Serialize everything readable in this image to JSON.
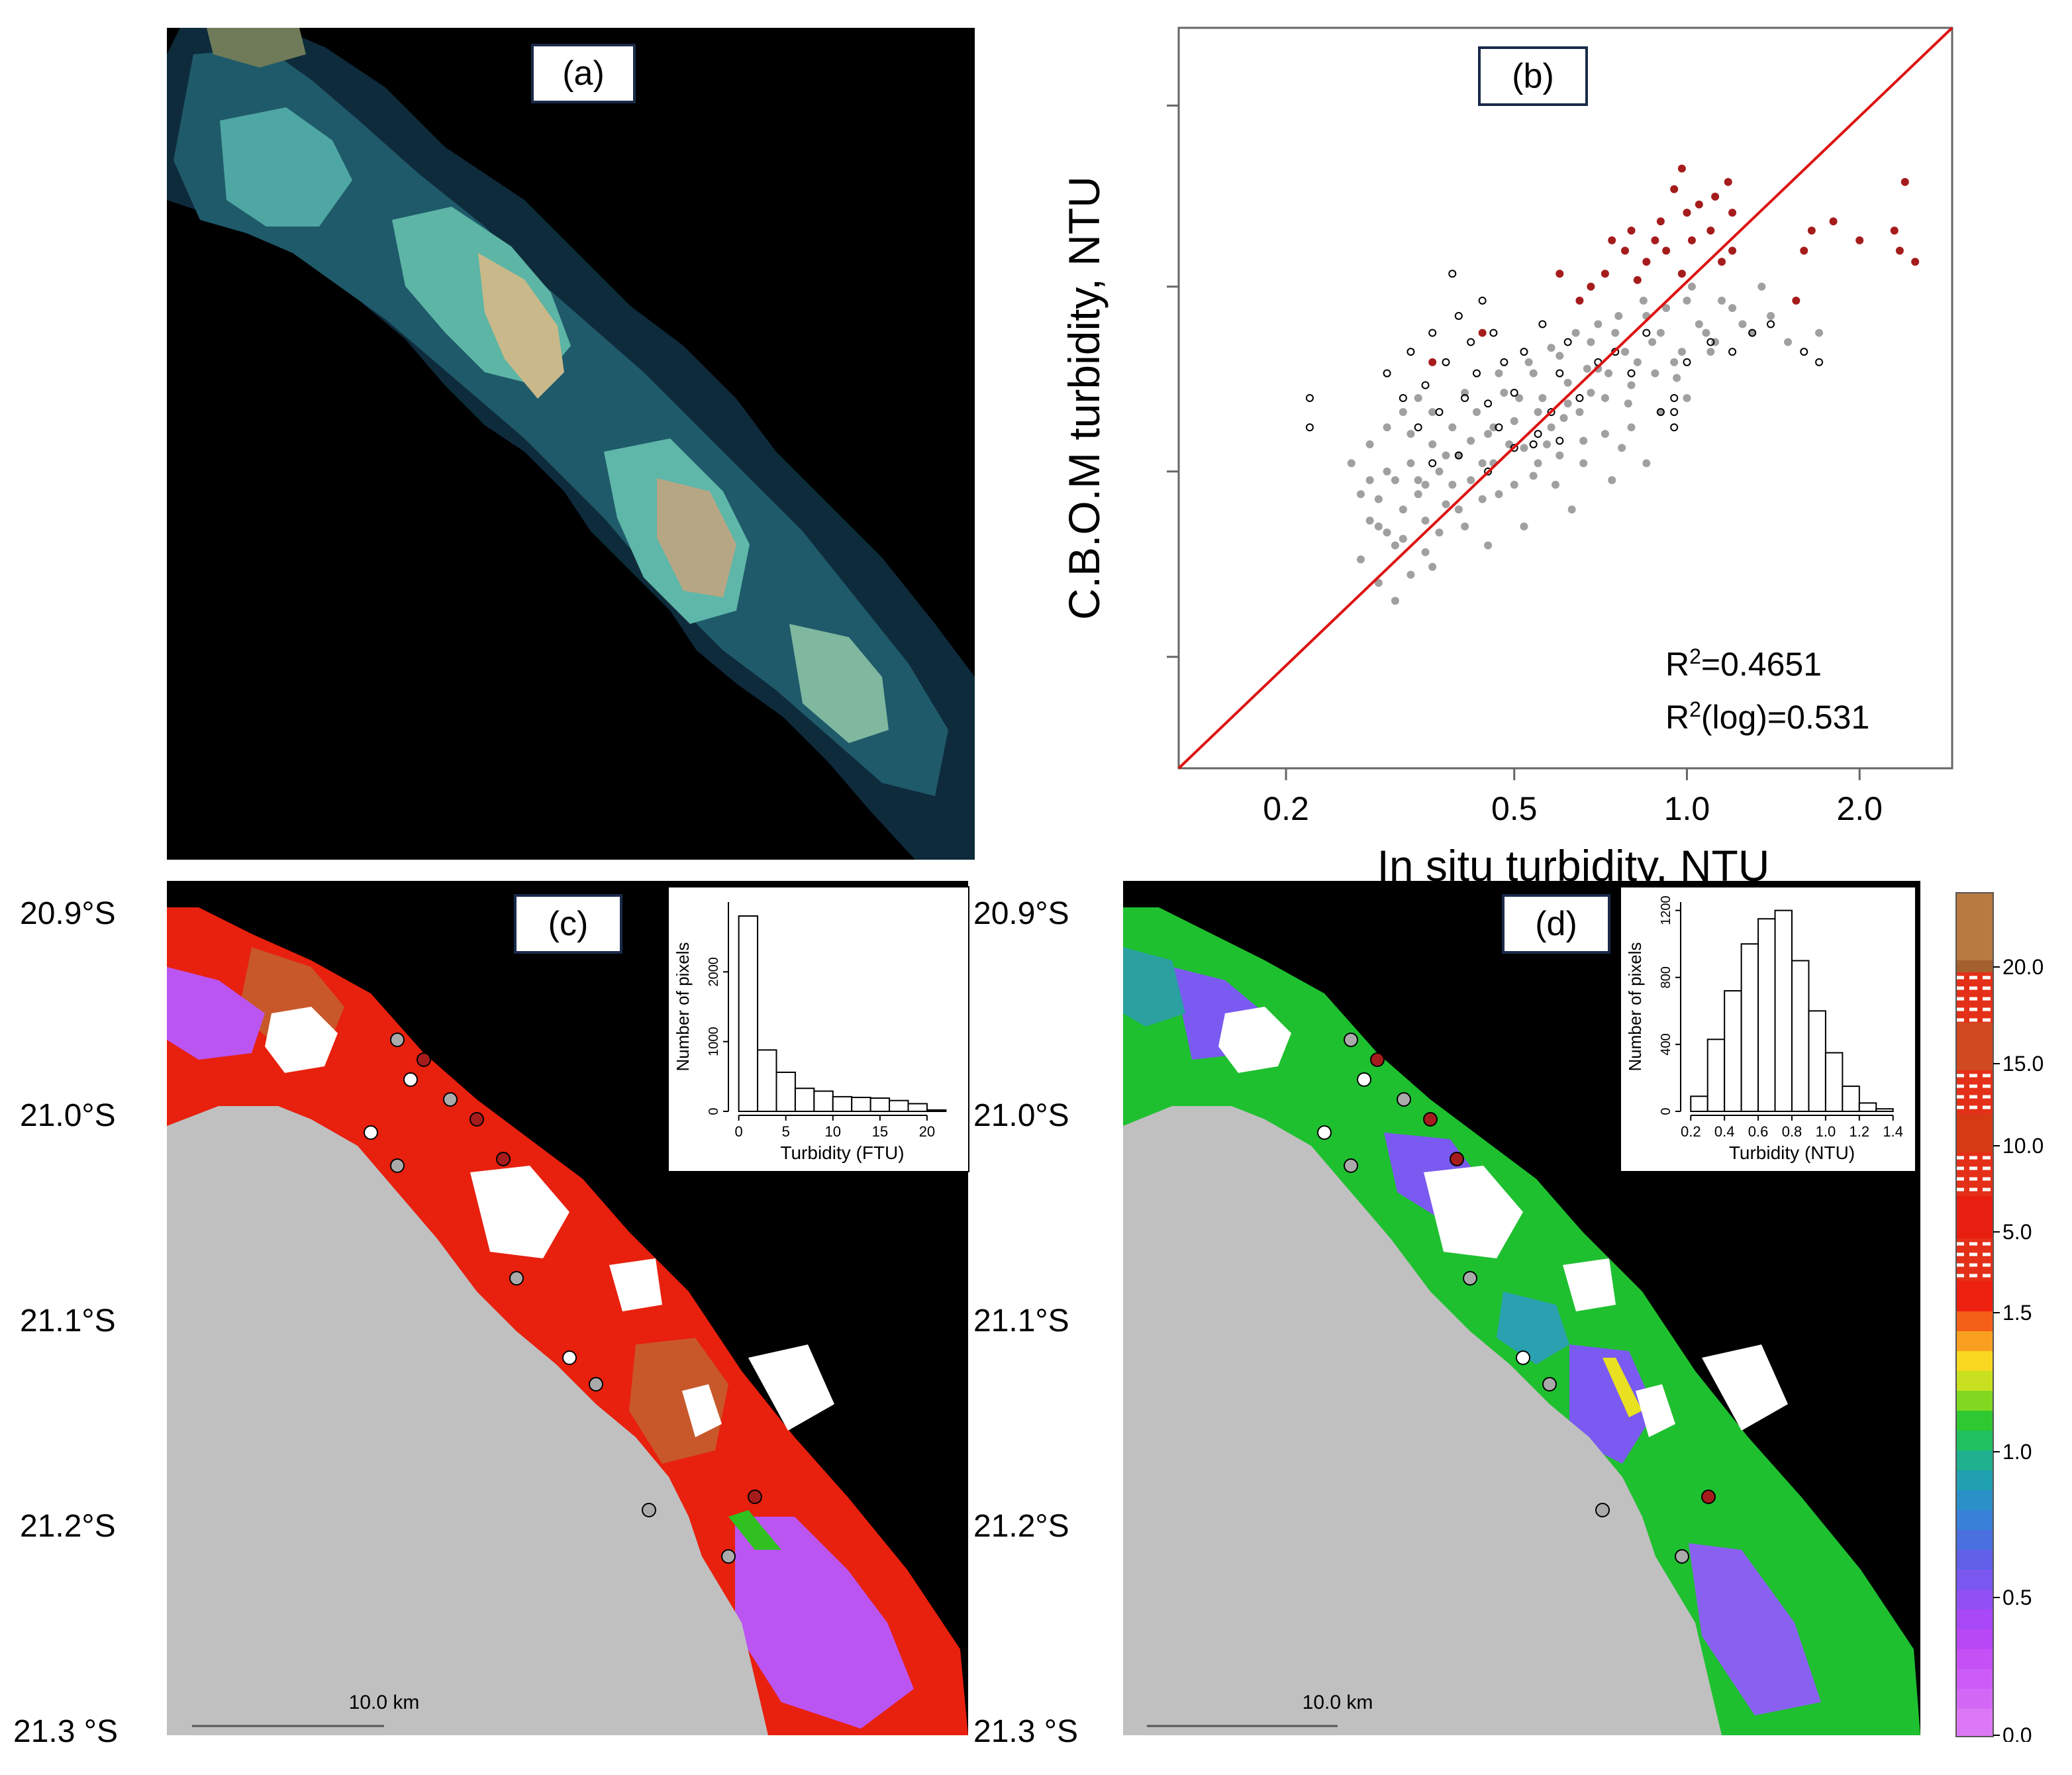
{
  "panels": {
    "a": {
      "label": "(a)"
    },
    "b": {
      "label": "(b)"
    },
    "c": {
      "label": "(c)"
    },
    "d": {
      "label": "(d)"
    }
  },
  "colors": {
    "frame_border": "#1a2a4a",
    "ocean_black": "#000000",
    "land_gray": "#c0c0c0",
    "cloud_white": "#ffffff",
    "one_to_one_line": "#dd1111",
    "scatter_gray": "#a0a0a0",
    "scatter_red": "#a51c1c",
    "scatter_open": "#000000"
  },
  "chart_data": [
    {
      "id": "b",
      "type": "scatter",
      "title": "(b)",
      "xlabel": "In situ turbidity, NTU",
      "ylabel": "C.B.O.M turbidity, NTU",
      "xscale": "log",
      "yscale": "log",
      "xlim": [
        0.13,
        2.9
      ],
      "ylim": [
        0.06,
        6.0
      ],
      "xticks": [
        0.2,
        0.5,
        1.0,
        2.0
      ],
      "xtick_labels": [
        "0.2",
        "0.5",
        "1.0",
        "2.0"
      ],
      "yticks": [
        0.12,
        0.38,
        1.2,
        3.7
      ],
      "ytick_labels": [
        "",
        "",
        "",
        ""
      ],
      "reference_line": "1:1",
      "annotations": [
        "R²=0.4651",
        "R²(log)=0.531"
      ],
      "r2_text": "0.4651",
      "r2log_text": "0.531",
      "series": [
        {
          "name": "gray",
          "points": [
            [
              0.28,
              0.28
            ],
            [
              0.29,
              0.32
            ],
            [
              0.3,
              0.26
            ],
            [
              0.31,
              0.36
            ],
            [
              0.32,
              0.3
            ],
            [
              0.33,
              0.4
            ],
            [
              0.34,
              0.33
            ],
            [
              0.35,
              0.28
            ],
            [
              0.36,
              0.45
            ],
            [
              0.37,
              0.38
            ],
            [
              0.38,
              0.31
            ],
            [
              0.39,
              0.5
            ],
            [
              0.4,
              0.42
            ],
            [
              0.42,
              0.36
            ],
            [
              0.43,
              0.55
            ],
            [
              0.45,
              0.48
            ],
            [
              0.46,
              0.4
            ],
            [
              0.48,
              0.62
            ],
            [
              0.5,
              0.52
            ],
            [
              0.52,
              0.44
            ],
            [
              0.54,
              0.7
            ],
            [
              0.56,
              0.6
            ],
            [
              0.58,
              0.5
            ],
            [
              0.6,
              0.78
            ],
            [
              0.62,
              0.66
            ],
            [
              0.65,
              0.55
            ],
            [
              0.68,
              0.85
            ],
            [
              0.7,
              0.72
            ],
            [
              0.72,
              0.6
            ],
            [
              0.75,
              0.9
            ],
            [
              0.78,
              0.8
            ],
            [
              0.8,
              0.65
            ],
            [
              0.85,
              1.0
            ],
            [
              0.9,
              0.9
            ],
            [
              0.95,
              0.75
            ],
            [
              1.0,
              1.1
            ],
            [
              1.05,
              0.95
            ],
            [
              1.1,
              0.8
            ],
            [
              1.2,
              1.05
            ],
            [
              1.3,
              0.9
            ],
            [
              1.4,
              1.0
            ],
            [
              1.5,
              0.85
            ],
            [
              0.27,
              0.22
            ],
            [
              0.29,
              0.19
            ],
            [
              0.31,
              0.24
            ],
            [
              0.33,
              0.2
            ],
            [
              0.35,
              0.23
            ],
            [
              0.37,
              0.26
            ],
            [
              0.4,
              0.3
            ],
            [
              0.44,
              0.32
            ],
            [
              0.5,
              0.35
            ],
            [
              0.55,
              0.4
            ],
            [
              0.6,
              0.42
            ],
            [
              0.66,
              0.46
            ],
            [
              0.72,
              0.48
            ],
            [
              0.8,
              0.5
            ],
            [
              0.9,
              0.55
            ],
            [
              1.0,
              0.6
            ],
            [
              0.26,
              0.4
            ],
            [
              0.28,
              0.45
            ],
            [
              0.3,
              0.5
            ],
            [
              0.32,
              0.55
            ],
            [
              0.34,
              0.6
            ],
            [
              0.36,
              0.55
            ],
            [
              0.41,
              0.62
            ],
            [
              0.47,
              0.7
            ],
            [
              0.53,
              0.75
            ],
            [
              0.58,
              0.82
            ],
            [
              0.64,
              0.9
            ],
            [
              0.7,
              0.95
            ],
            [
              0.76,
              1.0
            ],
            [
              0.84,
              1.1
            ],
            [
              0.92,
              1.05
            ],
            [
              1.02,
              1.2
            ],
            [
              1.15,
              1.1
            ],
            [
              0.27,
              0.33
            ],
            [
              0.3,
              0.38
            ],
            [
              0.34,
              0.36
            ],
            [
              0.38,
              0.42
            ],
            [
              0.42,
              0.46
            ],
            [
              0.46,
              0.5
            ],
            [
              0.49,
              0.45
            ],
            [
              0.55,
              0.55
            ],
            [
              0.62,
              0.58
            ],
            [
              0.68,
              0.62
            ],
            [
              0.73,
              0.7
            ],
            [
              0.82,
              0.75
            ],
            [
              0.88,
              0.7
            ],
            [
              0.98,
              0.8
            ],
            [
              1.08,
              0.9
            ],
            [
              1.25,
              0.95
            ],
            [
              1.7,
              0.9
            ],
            [
              0.31,
              0.17
            ],
            [
              0.36,
              0.21
            ],
            [
              0.45,
              0.24
            ],
            [
              0.52,
              0.27
            ],
            [
              0.63,
              0.3
            ],
            [
              0.74,
              0.36
            ],
            [
              0.85,
              0.4
            ],
            [
              0.28,
              0.36
            ],
            [
              0.33,
              0.48
            ],
            [
              0.39,
              0.35
            ],
            [
              0.44,
              0.4
            ],
            [
              0.51,
              0.6
            ],
            [
              0.57,
              0.45
            ],
            [
              0.61,
              0.53
            ],
            [
              0.67,
              0.72
            ],
            [
              0.79,
              0.58
            ],
            [
              0.87,
              0.85
            ],
            [
              0.96,
              0.68
            ],
            [
              1.12,
              0.85
            ],
            [
              1.35,
              1.2
            ],
            [
              0.29,
              0.27
            ],
            [
              0.32,
              0.25
            ],
            [
              0.35,
              0.35
            ],
            [
              0.41,
              0.27
            ],
            [
              0.47,
              0.33
            ],
            [
              0.54,
              0.37
            ],
            [
              0.59,
              0.35
            ],
            [
              0.66,
              0.4
            ],
            [
              0.77,
              0.44
            ]
          ]
        },
        {
          "name": "open",
          "points": [
            [
              0.22,
              0.5
            ],
            [
              0.22,
              0.6
            ],
            [
              0.3,
              0.7
            ],
            [
              0.32,
              0.6
            ],
            [
              0.33,
              0.8
            ],
            [
              0.34,
              0.5
            ],
            [
              0.35,
              0.65
            ],
            [
              0.36,
              0.9
            ],
            [
              0.37,
              0.55
            ],
            [
              0.38,
              0.75
            ],
            [
              0.39,
              1.3
            ],
            [
              0.4,
              1.0
            ],
            [
              0.41,
              0.6
            ],
            [
              0.42,
              0.85
            ],
            [
              0.43,
              0.7
            ],
            [
              0.44,
              1.1
            ],
            [
              0.45,
              0.58
            ],
            [
              0.46,
              0.9
            ],
            [
              0.47,
              0.5
            ],
            [
              0.48,
              0.75
            ],
            [
              0.5,
              0.62
            ],
            [
              0.52,
              0.8
            ],
            [
              0.54,
              0.45
            ],
            [
              0.56,
              0.95
            ],
            [
              0.58,
              0.55
            ],
            [
              0.6,
              0.7
            ],
            [
              0.62,
              0.85
            ],
            [
              0.65,
              0.6
            ],
            [
              0.7,
              0.75
            ],
            [
              0.75,
              0.8
            ],
            [
              0.8,
              0.7
            ],
            [
              0.85,
              0.9
            ],
            [
              0.9,
              0.55
            ],
            [
              1.0,
              0.75
            ],
            [
              1.1,
              0.85
            ],
            [
              1.2,
              0.8
            ],
            [
              1.3,
              0.9
            ],
            [
              1.4,
              0.95
            ],
            [
              1.6,
              0.8
            ],
            [
              1.7,
              0.75
            ],
            [
              0.36,
              0.4
            ],
            [
              0.4,
              0.42
            ],
            [
              0.45,
              0.38
            ],
            [
              0.5,
              0.44
            ],
            [
              0.55,
              0.48
            ],
            [
              0.6,
              0.46
            ],
            [
              0.95,
              0.5
            ],
            [
              0.95,
              0.55
            ],
            [
              0.95,
              0.6
            ]
          ]
        },
        {
          "name": "red",
          "points": [
            [
              0.36,
              0.75
            ],
            [
              0.44,
              0.9
            ],
            [
              0.6,
              1.3
            ],
            [
              0.65,
              1.1
            ],
            [
              0.68,
              1.2
            ],
            [
              0.72,
              1.3
            ],
            [
              0.74,
              1.6
            ],
            [
              0.8,
              1.7
            ],
            [
              0.85,
              1.4
            ],
            [
              0.9,
              1.8
            ],
            [
              0.92,
              1.5
            ],
            [
              0.95,
              2.2
            ],
            [
              0.98,
              2.5
            ],
            [
              1.0,
              1.9
            ],
            [
              1.02,
              1.6
            ],
            [
              1.05,
              2.0
            ],
            [
              1.1,
              1.7
            ],
            [
              1.15,
              1.4
            ],
            [
              1.18,
              2.3
            ],
            [
              1.2,
              1.9
            ],
            [
              1.2,
              1.5
            ],
            [
              1.55,
              1.1
            ],
            [
              1.6,
              1.5
            ],
            [
              1.8,
              1.8
            ],
            [
              2.0,
              1.6
            ],
            [
              2.3,
              1.7
            ],
            [
              2.35,
              1.5
            ],
            [
              2.5,
              1.4
            ],
            [
              2.4,
              2.3
            ],
            [
              1.65,
              1.7
            ],
            [
              0.82,
              1.25
            ],
            [
              0.88,
              1.6
            ],
            [
              0.78,
              1.5
            ],
            [
              0.98,
              1.3
            ],
            [
              1.12,
              2.1
            ]
          ]
        }
      ]
    },
    {
      "id": "c-inset",
      "type": "bar",
      "xlabel": "Turbidity (FTU)",
      "ylabel": "Number of pixels",
      "xticks": [
        0,
        5,
        10,
        15,
        20
      ],
      "xtick_labels": [
        "0",
        "5",
        "10",
        "15",
        "20"
      ],
      "yticks": [
        0,
        1000,
        2000
      ],
      "ytick_labels": [
        "0",
        "1000",
        "2000"
      ],
      "ylim": [
        0,
        3000
      ],
      "bin_edges": [
        0,
        2,
        4,
        6,
        8,
        10,
        12,
        14,
        16,
        18,
        20,
        22
      ],
      "values": [
        2800,
        880,
        560,
        330,
        290,
        210,
        200,
        190,
        155,
        110,
        20
      ]
    },
    {
      "id": "d-inset",
      "type": "bar",
      "xlabel": "Turbidity (NTU)",
      "ylabel": "Number of pixels",
      "xticks": [
        0.2,
        0.4,
        0.6,
        0.8,
        1.0,
        1.2,
        1.4
      ],
      "xtick_labels": [
        "0.2",
        "0.4",
        "0.6",
        "0.8",
        "1.0",
        "1.2",
        "1.4"
      ],
      "yticks": [
        0,
        400,
        800,
        1200
      ],
      "ytick_labels": [
        "0",
        "400",
        "800",
        "1200"
      ],
      "ylim": [
        0,
        1250
      ],
      "bin_edges": [
        0.2,
        0.3,
        0.4,
        0.5,
        0.6,
        0.7,
        0.8,
        0.9,
        1.0,
        1.1,
        1.2,
        1.3,
        1.4
      ],
      "values": [
        90,
        430,
        720,
        1000,
        1150,
        1200,
        900,
        600,
        350,
        150,
        50,
        15
      ]
    },
    {
      "id": "colorbar",
      "type": "heatmap",
      "tick_labels": [
        "20.0",
        "15.0",
        "10.0",
        "5.0",
        "1.5",
        "1.0",
        "0.5",
        "0.0"
      ],
      "tick_values": [
        20.0,
        15.0,
        10.0,
        5.0,
        1.5,
        1.0,
        0.5,
        0.0
      ]
    }
  ],
  "maps": {
    "lat_labels_c": [
      "20.9°S",
      "21.0°S",
      "21.1°S",
      "21.2°S",
      "21.3 °S"
    ],
    "lat_labels_d": [
      "20.9°S",
      "21.0°S",
      "21.1°S",
      "21.2°S",
      "21.3 °S"
    ],
    "scale_text": "10.0 km"
  }
}
